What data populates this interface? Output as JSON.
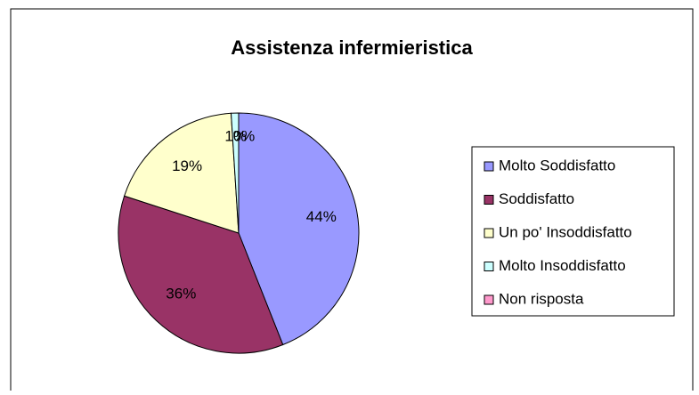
{
  "chart_data": {
    "type": "pie",
    "title": "Assistenza infermieristica",
    "categories": [
      "Molto Soddisfatto",
      "Soddisfatto",
      "Un po' Insoddisfatto",
      "Molto Insoddisfatto",
      "Non risposta"
    ],
    "values": [
      44,
      36,
      19,
      1,
      0
    ],
    "value_labels": [
      "44%",
      "36%",
      "19%",
      "1%",
      "0%"
    ],
    "colors": [
      "#9999ff",
      "#993366",
      "#ffffcc",
      "#ccffff",
      "#ff99cc"
    ],
    "legend": "right"
  }
}
